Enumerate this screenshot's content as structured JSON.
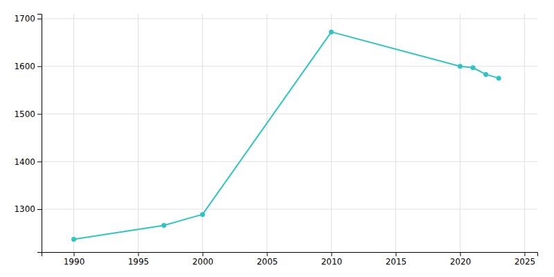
{
  "chart_data": {
    "type": "line",
    "x": [
      1990,
      1997,
      2000,
      2010,
      2020,
      2021,
      2022,
      2023
    ],
    "values": [
      1237,
      1266,
      1289,
      1672,
      1600,
      1597,
      1583,
      1575
    ],
    "color": "#2EC4C4",
    "marker": "circle",
    "xlim": [
      1987.5,
      2026
    ],
    "ylim": [
      1210,
      1710
    ],
    "xticks": [
      1990,
      1995,
      2000,
      2005,
      2010,
      2015,
      2020,
      2025
    ],
    "yticks": [
      1300,
      1400,
      1500,
      1600,
      1700
    ],
    "grid": true
  }
}
